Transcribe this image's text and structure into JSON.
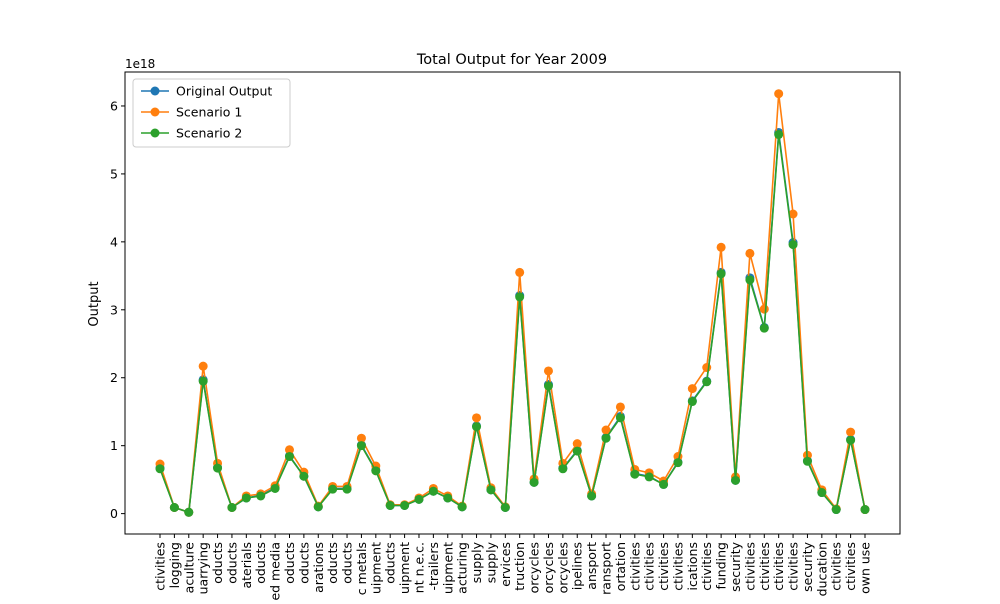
{
  "chart_data": {
    "type": "line",
    "title": "Total Output for Year 2009",
    "xlabel": "",
    "ylabel": "Output",
    "y_offset_text": "1e18",
    "ylim": [
      -0.3,
      6.5
    ],
    "yticks": [
      0,
      1,
      2,
      3,
      4,
      5,
      6
    ],
    "y_unit_multiplier": "1e18",
    "grid": false,
    "legend_position": "upper-left",
    "categories": [
      "ctivities",
      "logging",
      "aculture",
      "uarrying",
      "oducts",
      "oducts",
      "aterials",
      "oducts",
      "ed media",
      "oducts",
      "oducts",
      "arations",
      "oducts",
      "oducts",
      "c metals",
      "uipment",
      "oducts",
      "uipment",
      "nt n.e.c.",
      "-trailers",
      "uipment",
      "acturing",
      "supply",
      "supply",
      "ervices",
      "truction",
      "orcycles",
      "orcycles",
      "orcycles",
      "ipelines",
      "ansport",
      "ransport",
      "ortation",
      "ctivities",
      "ctivities",
      "ctivities",
      "ctivities",
      "ications",
      "ctivities",
      "funding",
      "security",
      "ctivities",
      "ctivities",
      "ctivities",
      "ctivities",
      "security",
      "ducation",
      "ctivities",
      "ctivities",
      "own use"
    ],
    "series": [
      {
        "name": "Original Output",
        "color": "#1f77b4",
        "values": [
          0.67,
          0.09,
          0.02,
          1.97,
          0.68,
          0.09,
          0.23,
          0.27,
          0.38,
          0.85,
          0.55,
          0.1,
          0.37,
          0.37,
          1.01,
          0.64,
          0.12,
          0.12,
          0.21,
          0.33,
          0.23,
          0.1,
          1.29,
          0.35,
          0.09,
          3.21,
          0.46,
          1.9,
          0.67,
          0.93,
          0.26,
          1.12,
          1.43,
          0.59,
          0.55,
          0.43,
          0.76,
          1.66,
          1.95,
          3.55,
          0.49,
          3.47,
          2.74,
          5.61,
          3.99,
          0.78,
          0.31,
          0.06,
          1.09,
          0.06
        ]
      },
      {
        "name": "Scenario 1",
        "color": "#ff7f0e",
        "values": [
          0.73,
          0.09,
          0.02,
          2.17,
          0.74,
          0.09,
          0.26,
          0.29,
          0.41,
          0.94,
          0.61,
          0.11,
          0.4,
          0.4,
          1.11,
          0.7,
          0.13,
          0.13,
          0.23,
          0.37,
          0.26,
          0.11,
          1.41,
          0.38,
          0.1,
          3.55,
          0.51,
          2.1,
          0.74,
          1.03,
          0.29,
          1.23,
          1.57,
          0.65,
          0.6,
          0.48,
          0.84,
          1.84,
          2.15,
          3.92,
          0.54,
          3.83,
          3.01,
          6.18,
          4.41,
          0.86,
          0.35,
          0.07,
          1.2,
          0.06
        ]
      },
      {
        "name": "Scenario 2",
        "color": "#2ca02c",
        "values": [
          0.66,
          0.09,
          0.02,
          1.95,
          0.67,
          0.09,
          0.23,
          0.26,
          0.37,
          0.84,
          0.55,
          0.1,
          0.36,
          0.36,
          1.0,
          0.63,
          0.12,
          0.12,
          0.21,
          0.33,
          0.23,
          0.1,
          1.28,
          0.35,
          0.09,
          3.19,
          0.46,
          1.88,
          0.66,
          0.92,
          0.26,
          1.11,
          1.41,
          0.58,
          0.54,
          0.43,
          0.75,
          1.65,
          1.94,
          3.53,
          0.49,
          3.44,
          2.73,
          5.58,
          3.96,
          0.77,
          0.31,
          0.06,
          1.08,
          0.06
        ]
      }
    ]
  }
}
